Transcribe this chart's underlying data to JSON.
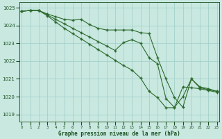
{
  "series": [
    {
      "x": [
        0,
        1,
        2,
        3,
        4,
        5,
        6,
        7,
        8,
        9,
        10,
        11,
        12,
        13,
        14,
        15,
        16,
        17,
        18,
        19,
        20,
        21,
        22,
        23
      ],
      "y": [
        1024.8,
        1024.85,
        1024.85,
        1024.65,
        1024.5,
        1024.35,
        1024.3,
        1024.35,
        1024.05,
        1023.85,
        1023.75,
        1023.75,
        1023.75,
        1023.75,
        1023.6,
        1023.55,
        1022.2,
        1021.0,
        1019.95,
        1019.4,
        1021.0,
        1020.55,
        1020.45,
        1020.3
      ]
    },
    {
      "x": [
        0,
        1,
        2,
        3,
        4,
        5,
        6,
        7,
        8,
        9,
        10,
        11,
        12,
        13,
        14,
        15,
        16,
        17,
        18,
        19,
        20,
        21,
        22,
        23
      ],
      "y": [
        1024.8,
        1024.85,
        1024.85,
        1024.6,
        1024.35,
        1024.1,
        1023.85,
        1023.6,
        1023.35,
        1023.1,
        1022.85,
        1022.6,
        1023.05,
        1023.2,
        1023.0,
        1022.2,
        1021.85,
        1019.9,
        1019.4,
        1020.0,
        1021.0,
        1020.5,
        1020.4,
        1020.3
      ]
    },
    {
      "x": [
        0,
        1,
        2,
        3,
        4,
        5,
        6,
        7,
        8,
        9,
        10,
        11,
        12,
        13,
        14,
        15,
        16,
        17,
        18,
        19,
        20,
        21,
        22,
        23
      ],
      "y": [
        1024.8,
        1024.85,
        1024.85,
        1024.55,
        1024.2,
        1023.85,
        1023.55,
        1023.25,
        1022.95,
        1022.65,
        1022.35,
        1022.05,
        1021.75,
        1021.5,
        1021.05,
        1020.3,
        1019.95,
        1019.38,
        1019.38,
        1020.55,
        1020.5,
        1020.45,
        1020.35,
        1020.25
      ]
    }
  ],
  "line_color": "#2d6a2d",
  "bg_color": "#c8e8e0",
  "grid_color": "#9ecec8",
  "yticks": [
    1019,
    1020,
    1021,
    1022,
    1023,
    1024,
    1025
  ],
  "xlabel": "Graphe pression niveau de la mer (hPa)",
  "ylim": [
    1018.6,
    1025.3
  ],
  "xlim": [
    -0.3,
    23.3
  ],
  "tick_color": "#1a5020",
  "spine_color": "#1a5020"
}
